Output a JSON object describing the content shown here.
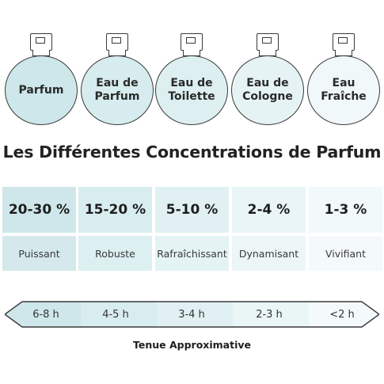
{
  "bottles": [
    {
      "label": "Parfum",
      "fill": "#cde7ea"
    },
    {
      "label": "Eau de\nParfum",
      "fill": "#d7ecee"
    },
    {
      "label": "Eau de\nToilette",
      "fill": "#deeff1"
    },
    {
      "label": "Eau de\nCologne",
      "fill": "#e6f3f4"
    },
    {
      "label": "Eau\nFraîche",
      "fill": "#f0f8f9"
    }
  ],
  "title": "Les Différentes Concentrations de Parfum",
  "concentrations": [
    {
      "percent": "20-30 %",
      "label": "Puissant",
      "fill_top": "#cfe7ea",
      "fill_bot": "#d5e9ec"
    },
    {
      "percent": "15-20 %",
      "label": "Robuste",
      "fill_top": "#d8edef",
      "fill_bot": "#dceff1"
    },
    {
      "percent": "5-10 %",
      "label": "Rafraîchissant",
      "fill_top": "#e1f1f3",
      "fill_bot": "#e4f3f4"
    },
    {
      "percent": "2-4 %",
      "label": "Dynamisant",
      "fill_top": "#e9f5f6",
      "fill_bot": "#ecf6f7"
    },
    {
      "percent": "1-3 %",
      "label": "Vivifiant",
      "fill_top": "#f2f9fa",
      "fill_bot": "#f4fafb"
    }
  ],
  "durations": [
    {
      "label": "6-8 h",
      "fill": "#cfe7ea"
    },
    {
      "label": "4-5 h",
      "fill": "#d8edef"
    },
    {
      "label": "3-4 h",
      "fill": "#e1f1f3"
    },
    {
      "label": "2-3 h",
      "fill": "#eaf5f6"
    },
    {
      "label": "<2 h",
      "fill": "#f4fafb"
    }
  ],
  "footer": "Tenue Approximative"
}
